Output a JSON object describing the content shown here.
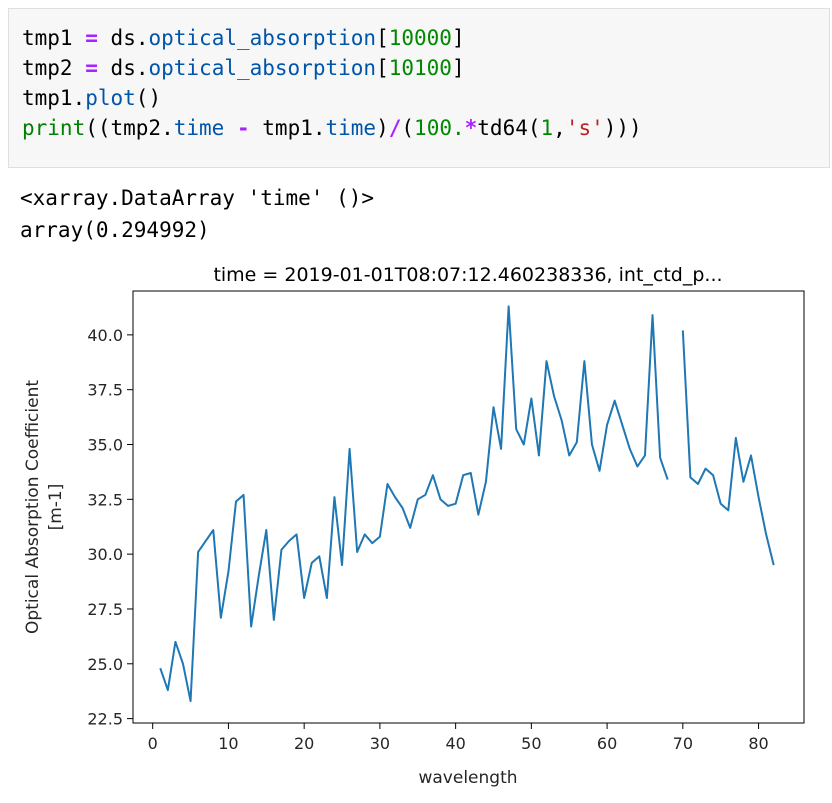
{
  "code_cell": {
    "line1": {
      "v": "tmp1",
      "op": "=",
      "obj": "ds.",
      "attr": "optical_absorption",
      "lb": "[",
      "idx": "10000",
      "rb": "]"
    },
    "line2": {
      "v": "tmp2",
      "op": "=",
      "obj": "ds.",
      "attr": "optical_absorption",
      "lb": "[",
      "idx": "10100",
      "rb": "]"
    },
    "line3": {
      "v": "tmp1.",
      "attr": "plot",
      "paren": "()"
    },
    "line4": {
      "fn": "print",
      "p1": "((tmp2.",
      "a1": "time",
      "minus": "-",
      "p2": "tmp1.",
      "a2": "time",
      "p3": ")",
      "div": "/",
      "p4": "(",
      "n1": "100.",
      "star": "*",
      "p5": "td64(",
      "n2": "1",
      "comma": ",",
      "s": "'s'",
      "p6": ")))"
    }
  },
  "output": {
    "line1": "<xarray.DataArray 'time' ()>",
    "line2": "array(0.294992)"
  },
  "chart_data": {
    "type": "line",
    "title": "time = 2019-01-01T08:07:12.460238336, int_ctd_p...",
    "xlabel": "wavelength",
    "ylabel_line1": "Optical Absorption Coefficient",
    "ylabel_line2": "[m-1]",
    "xlim": [
      -2.6,
      86.0
    ],
    "ylim": [
      22.3,
      42.0
    ],
    "xticks": [
      0,
      10,
      20,
      30,
      40,
      50,
      60,
      70,
      80
    ],
    "yticks": [
      22.5,
      25.0,
      27.5,
      30.0,
      32.5,
      35.0,
      37.5,
      40.0
    ],
    "ytick_labels": [
      "22.5",
      "25.0",
      "27.5",
      "30.0",
      "32.5",
      "35.0",
      "37.5",
      "40.0"
    ],
    "line_color": "#1f77b4",
    "grid": false,
    "series": [
      {
        "x": [
          1,
          2,
          3,
          4,
          5,
          6,
          7,
          8,
          9,
          10,
          11,
          12,
          13,
          14,
          15,
          16,
          17,
          18,
          19,
          20,
          21,
          22,
          23,
          24,
          25,
          26,
          27,
          28,
          29,
          30,
          31,
          32,
          33,
          34,
          35,
          36,
          37,
          38,
          39,
          40,
          41,
          42,
          43,
          44,
          45,
          46,
          47,
          48,
          49,
          50,
          51,
          52,
          53,
          54,
          55,
          56,
          57,
          58,
          59,
          60,
          61,
          62,
          63,
          64,
          65,
          66,
          67,
          68,
          69,
          70,
          71,
          72,
          73,
          74,
          75,
          76,
          77,
          78,
          79,
          80,
          81,
          82
        ],
        "y": [
          24.8,
          23.8,
          26.0,
          25.0,
          23.3,
          30.1,
          30.6,
          31.1,
          27.1,
          29.2,
          32.4,
          32.7,
          26.7,
          29.0,
          31.1,
          27.0,
          30.2,
          30.6,
          30.9,
          28.0,
          29.6,
          29.9,
          28.0,
          32.6,
          29.5,
          34.8,
          30.1,
          30.9,
          30.5,
          30.8,
          33.2,
          32.6,
          32.1,
          31.2,
          32.5,
          32.7,
          33.6,
          32.5,
          32.2,
          32.3,
          33.6,
          33.7,
          31.8,
          33.3,
          36.7,
          34.8,
          41.3,
          35.7,
          35.0,
          37.1,
          34.5,
          38.8,
          37.2,
          36.1,
          34.5,
          35.1,
          38.8,
          35.0,
          33.8,
          35.9,
          37.0,
          35.9,
          34.8,
          34.0,
          34.5,
          40.9,
          34.4,
          33.4,
          null,
          40.2,
          33.5,
          33.2,
          33.9,
          33.6,
          32.3,
          32.0,
          35.3,
          33.3,
          34.5,
          32.6,
          30.9,
          29.5
        ]
      }
    ]
  }
}
